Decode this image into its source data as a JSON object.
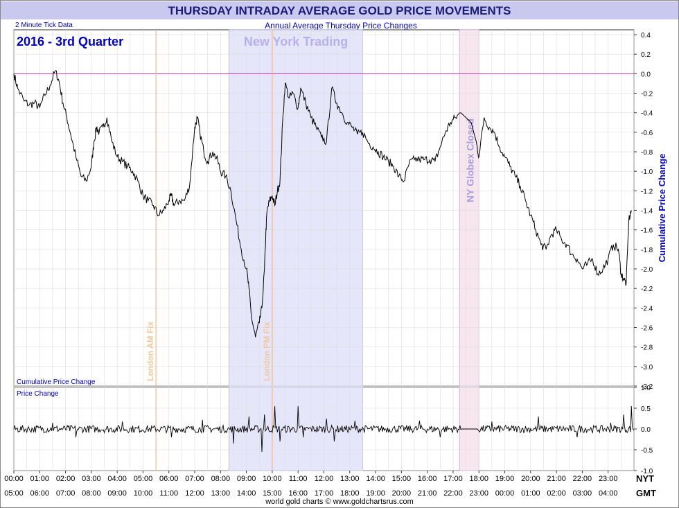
{
  "title": "THURSDAY INTRADAY AVERAGE GOLD PRICE MOVEMENTS",
  "subtitle": "Annual Average Thursday Price Changes",
  "tick_note": "2 Minute Tick Data",
  "period_label": "2016 - 3rd Quarter",
  "footer": "world gold charts © www.goldchartsrus.com",
  "colors": {
    "title_bg": "#c9c9f0",
    "title_text": "#1a1a7a",
    "blue_text": "#0000cc",
    "line": "#000000",
    "zero_line": "#cc33aa",
    "ny_band": "#e6e6fa",
    "ny_label": "#b8b0ee",
    "globex_band": "#f8e6ee",
    "globex_label": "#a89ee0",
    "fix_line": "#f0b070",
    "fix_label": "#f3c999",
    "grid": "#dcdcdc"
  },
  "chart_data": [
    {
      "type": "line",
      "title": "THURSDAY INTRADAY AVERAGE GOLD PRICE MOVEMENTS",
      "ylabel": "Cumulative Price Change",
      "panel_label": "Cumulative Price Change",
      "ylim": [
        -3.2,
        0.45
      ],
      "yticks": [
        0.4,
        0.2,
        0.0,
        -0.2,
        -0.4,
        -0.6,
        -0.8,
        -1.0,
        -1.2,
        -1.4,
        -1.6,
        -1.8,
        -2.0,
        -2.2,
        -2.4,
        -2.6,
        -2.8,
        -3.0,
        -3.2
      ],
      "xlim": [
        "00:00",
        "24:00"
      ],
      "x_ticks_nyt": [
        "00:00",
        "01:00",
        "02:00",
        "03:00",
        "04:00",
        "05:00",
        "06:00",
        "07:00",
        "08:00",
        "09:00",
        "10:00",
        "11:00",
        "12:00",
        "13:00",
        "14:00",
        "15:00",
        "16:00",
        "17:00",
        "18:00",
        "19:00",
        "20:00",
        "21:00",
        "22:00",
        "23:00"
      ],
      "x_ticks_gmt": [
        "05:00",
        "06:00",
        "07:00",
        "08:00",
        "09:00",
        "10:00",
        "11:00",
        "12:00",
        "13:00",
        "14:00",
        "15:00",
        "16:00",
        "17:00",
        "18:00",
        "19:00",
        "20:00",
        "21:00",
        "22:00",
        "23:00",
        "00:00",
        "01:00",
        "02:00",
        "03:00",
        "04:00"
      ],
      "x_axis_label_nyt": "NYT",
      "x_axis_label_gmt": "GMT",
      "grid": true,
      "series": [
        {
          "values_x_hours": [
            0.0,
            0.15,
            0.4,
            0.6,
            0.8,
            1.0,
            1.2,
            1.4,
            1.6,
            1.75,
            1.9,
            2.05,
            2.2,
            2.4,
            2.6,
            2.8,
            3.0,
            3.1,
            3.2,
            3.3,
            3.45,
            3.6,
            3.8,
            4.0,
            4.2,
            4.4,
            4.6,
            4.8,
            5.0,
            5.2,
            5.4,
            5.6,
            5.8,
            6.0,
            6.1,
            6.2,
            6.4,
            6.6,
            6.8,
            7.0,
            7.1,
            7.2,
            7.35,
            7.5,
            7.7,
            7.9,
            8.0,
            8.2,
            8.4,
            8.6,
            8.8,
            9.0,
            9.1,
            9.2,
            9.35,
            9.5,
            9.6,
            9.7,
            9.75,
            9.8,
            9.9,
            10.0,
            10.1,
            10.2,
            10.3,
            10.4,
            10.5,
            10.65,
            10.8,
            11.0,
            11.1,
            11.3,
            11.5,
            11.7,
            11.9,
            12.1,
            12.3,
            12.5,
            12.7,
            12.9,
            13.1,
            13.3,
            13.5,
            13.7,
            13.9,
            14.1,
            14.3,
            14.5,
            14.7,
            14.9,
            15.1,
            15.3,
            15.5,
            15.7,
            15.9,
            16.1,
            16.3,
            16.5,
            16.7,
            16.9,
            17.1,
            17.3,
            17.5,
            17.7,
            17.9,
            18.0,
            18.2,
            18.4,
            18.6,
            18.8,
            19.0,
            19.2,
            19.4,
            19.6,
            19.8,
            20.0,
            20.2,
            20.4,
            20.6,
            20.8,
            21.0,
            21.2,
            21.4,
            21.6,
            21.8,
            22.0,
            22.2,
            22.4,
            22.6,
            22.8,
            23.0,
            23.2,
            23.4,
            23.5,
            23.6,
            23.7,
            23.8,
            23.9
          ],
          "values_y": [
            0.0,
            -0.15,
            -0.28,
            -0.32,
            -0.3,
            -0.35,
            -0.22,
            -0.12,
            0.03,
            -0.08,
            -0.3,
            -0.45,
            -0.62,
            -0.85,
            -1.05,
            -1.1,
            -0.95,
            -0.7,
            -0.55,
            -0.6,
            -0.55,
            -0.45,
            -0.7,
            -0.85,
            -0.9,
            -0.95,
            -1.0,
            -1.1,
            -1.25,
            -1.3,
            -1.35,
            -1.45,
            -1.4,
            -1.3,
            -1.25,
            -1.35,
            -1.3,
            -1.3,
            -1.15,
            -0.55,
            -0.45,
            -0.6,
            -0.8,
            -0.9,
            -0.8,
            -0.9,
            -1.0,
            -1.05,
            -1.2,
            -1.5,
            -1.8,
            -2.0,
            -2.2,
            -2.5,
            -2.7,
            -2.55,
            -2.4,
            -2.0,
            -1.65,
            -1.4,
            -1.3,
            -1.25,
            -1.35,
            -1.2,
            -1.1,
            -0.5,
            -0.1,
            -0.25,
            -0.2,
            -0.35,
            -0.15,
            -0.3,
            -0.45,
            -0.55,
            -0.65,
            -0.7,
            -0.15,
            -0.3,
            -0.4,
            -0.5,
            -0.55,
            -0.62,
            -0.6,
            -0.7,
            -0.75,
            -0.8,
            -0.85,
            -0.9,
            -0.95,
            -1.05,
            -1.1,
            -0.92,
            -0.88,
            -0.88,
            -0.88,
            -0.88,
            -0.9,
            -0.75,
            -0.6,
            -0.5,
            -0.45,
            -0.4,
            -0.45,
            -0.5,
            -0.7,
            -0.85,
            -0.45,
            -0.55,
            -0.6,
            -0.75,
            -0.85,
            -0.95,
            -1.05,
            -1.15,
            -1.3,
            -1.45,
            -1.6,
            -1.75,
            -1.8,
            -1.65,
            -1.6,
            -1.7,
            -1.75,
            -1.85,
            -1.9,
            -2.0,
            -1.95,
            -1.9,
            -2.05,
            -2.0,
            -1.9,
            -1.75,
            -1.8,
            -2.05,
            -2.1,
            -2.15,
            -1.5,
            -1.4
          ],
          "note": "approximate 2-minute tick average cumulative change"
        }
      ]
    },
    {
      "type": "line",
      "panel_label": "Price Change",
      "ylim": [
        -1.0,
        1.0
      ],
      "yticks": [
        1.0,
        0.5,
        0.0,
        -0.5,
        -1.0
      ],
      "xlim": [
        "00:00",
        "24:00"
      ],
      "grid": true,
      "series": [
        {
          "spikes_x_hours": [
            1.5,
            2.4,
            4.2,
            6.1,
            7.3,
            8.5,
            9.1,
            9.6,
            9.7,
            10.1,
            10.3,
            11.0,
            11.2,
            12.1,
            12.4,
            13.2,
            15.7,
            16.5,
            18.5,
            20.3,
            21.8,
            23.1,
            23.6,
            23.9
          ],
          "spikes_y": [
            0.15,
            -0.2,
            0.18,
            -0.2,
            0.22,
            -0.35,
            0.3,
            -0.55,
            0.35,
            0.55,
            -0.3,
            0.55,
            -0.2,
            0.25,
            -0.3,
            0.2,
            0.2,
            -0.2,
            0.18,
            0.3,
            -0.2,
            0.15,
            0.35,
            0.55
          ],
          "note": "per-interval change noise, approx ±0.1 with larger spikes"
        }
      ]
    }
  ],
  "annotations": {
    "ny_trading_label": "New York Trading",
    "ny_trading_start": 8.33,
    "ny_trading_end": 13.5,
    "london_am_fix_label": "London AM Fix",
    "london_am_fix_time": 5.5,
    "london_pm_fix_label": "London PM Fix",
    "london_pm_fix_time": 10.0,
    "globex_label": "NY Globex Closed",
    "globex_start": 17.25,
    "globex_end": 18.0
  }
}
